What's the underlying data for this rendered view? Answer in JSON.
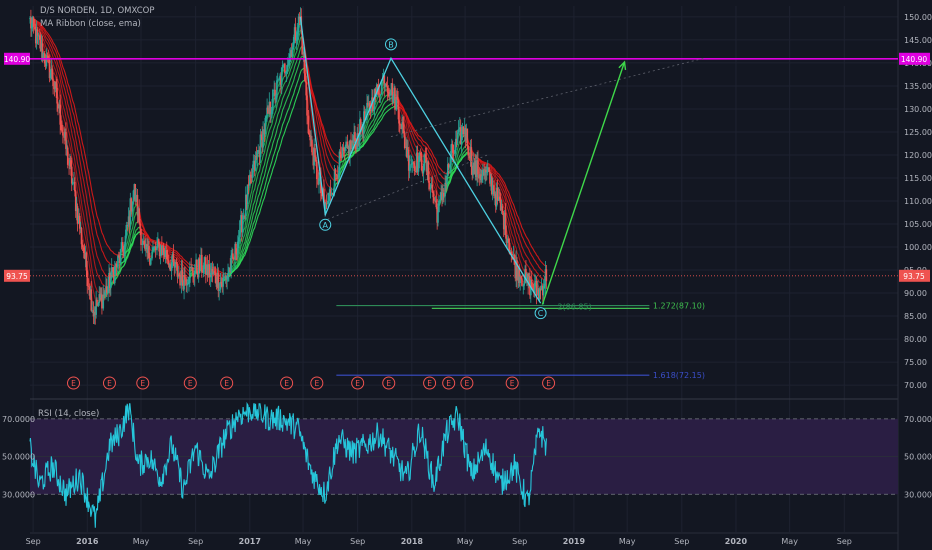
{
  "window": {
    "background": "#131722"
  },
  "main_pane": {
    "symbol_line": "D/S NORDEN, 1D, OMXCOP",
    "indicator_line": "MA Ribbon (close, ema)",
    "y_ticks": [
      "150.00",
      "145.00",
      "140.00",
      "135.00",
      "130.00",
      "125.00",
      "120.00",
      "115.00",
      "110.00",
      "105.00",
      "100.00",
      "95.00",
      "90.00",
      "85.00",
      "80.00",
      "75.00",
      "70.00"
    ],
    "hline_label": "140.90",
    "last_price_label": "93.75",
    "earnings_marker": "E",
    "fib_label_1": "2(86.85)",
    "fib_label_2": "1.272(87.10)",
    "fib_label_3": "1.618(72.15)",
    "abc_labels": [
      "A",
      "B",
      "C"
    ]
  },
  "rsi_pane": {
    "title": "RSI (14, close)",
    "y_ticks": [
      "70.0000",
      "50.0000",
      "30.0000"
    ]
  },
  "x_ticks": [
    "Sep",
    "2016",
    "May",
    "Sep",
    "2017",
    "May",
    "Sep",
    "2018",
    "May",
    "Sep",
    "2019",
    "May",
    "Sep",
    "2020",
    "May",
    "Sep"
  ],
  "colors": {
    "up": "#26a69a",
    "down": "#ef5350",
    "magenta": "#e000e0",
    "wave": "#4dd0e1",
    "arrow": "#3fd84a",
    "rsi": "#26c6da",
    "rsi_band": "#2a1e43",
    "ribbon_bull": "#2fe05a",
    "ribbon_bear": "#e01818",
    "navy": "#3a4ec8"
  },
  "chart_data": {
    "type": "line",
    "x_range": [
      "2015-08-25",
      "2020-12-31"
    ],
    "ylim": [
      68.5,
      151.5
    ],
    "price_path": [
      [
        "2015-08-25",
        149
      ],
      [
        "2015-10-15",
        137
      ],
      [
        "2015-12-01",
        113
      ],
      [
        "2016-01-15",
        86
      ],
      [
        "2016-02-10",
        90
      ],
      [
        "2016-03-25",
        100
      ],
      [
        "2016-04-15",
        113
      ],
      [
        "2016-05-10",
        98
      ],
      [
        "2016-06-15",
        100
      ],
      [
        "2016-08-01",
        93
      ],
      [
        "2016-09-15",
        96
      ],
      [
        "2016-11-01",
        92
      ],
      [
        "2016-11-25",
        97
      ],
      [
        "2017-01-05",
        115
      ],
      [
        "2017-02-15",
        130
      ],
      [
        "2017-04-01",
        142
      ],
      [
        "2017-04-25",
        150
      ],
      [
        "2017-05-15",
        124
      ],
      [
        "2017-06-20",
        108
      ],
      [
        "2017-07-20",
        118
      ],
      [
        "2017-09-01",
        124
      ],
      [
        "2017-10-01",
        131
      ],
      [
        "2017-11-01",
        137
      ],
      [
        "2017-11-30",
        131
      ],
      [
        "2017-12-25",
        119
      ],
      [
        "2018-02-01",
        118
      ],
      [
        "2018-03-01",
        107
      ],
      [
        "2018-04-01",
        120
      ],
      [
        "2018-04-30",
        126
      ],
      [
        "2018-05-20",
        117
      ],
      [
        "2018-06-25",
        115
      ],
      [
        "2018-07-25",
        107
      ],
      [
        "2018-08-20",
        96
      ],
      [
        "2018-09-20",
        92
      ],
      [
        "2018-10-15",
        90
      ],
      [
        "2018-11-01",
        94
      ]
    ],
    "hline": 140.9,
    "last_price": 93.75,
    "abc_points": [
      {
        "label": "A",
        "date": "2017-06-20",
        "price": 107
      },
      {
        "label": "B",
        "date": "2017-11-15",
        "price": 141
      },
      {
        "label": "C",
        "date": "2018-10-18",
        "price": 87.8
      }
    ],
    "wave_line": [
      [
        "2017-04-25",
        150
      ],
      [
        "2017-06-20",
        107
      ],
      [
        "2017-11-15",
        141
      ],
      [
        "2018-10-18",
        87.8
      ]
    ],
    "projection_arrow": [
      [
        "2018-10-22",
        87.5
      ],
      [
        "2019-04-25",
        140.2
      ]
    ],
    "fib_lines": [
      {
        "label": "2(86.85)",
        "price": 86.85,
        "from": "2017-07-15",
        "to": "2019-06-20",
        "color": "#2e8b57"
      },
      {
        "label": "1.272(87.10)",
        "price": 87.1,
        "from": "2018-02-15",
        "to": "2019-06-20",
        "color": "#3fbf4f"
      },
      {
        "label": "1.618(72.15)",
        "price": 72.15,
        "from": "2017-07-15",
        "to": "2019-06-20",
        "color": "#3a4ec8"
      }
    ],
    "earnings_dates": [
      "2015-12-01",
      "2016-02-20",
      "2016-05-05",
      "2016-08-20",
      "2016-11-10",
      "2017-03-25",
      "2017-06-01",
      "2017-09-01",
      "2017-11-10",
      "2018-02-10",
      "2018-03-25",
      "2018-05-05",
      "2018-08-15",
      "2018-11-05"
    ],
    "rsi": {
      "ylim": [
        10,
        80
      ],
      "levels": [
        70,
        30
      ],
      "path": [
        [
          "2015-08-25",
          55
        ],
        [
          "2015-09-15",
          35
        ],
        [
          "2015-10-15",
          45
        ],
        [
          "2015-11-15",
          30
        ],
        [
          "2015-12-15",
          40
        ],
        [
          "2016-01-20",
          16
        ],
        [
          "2016-02-20",
          55
        ],
        [
          "2016-03-15",
          63
        ],
        [
          "2016-04-05",
          77
        ],
        [
          "2016-04-25",
          45
        ],
        [
          "2016-05-20",
          50
        ],
        [
          "2016-06-15",
          38
        ],
        [
          "2016-07-10",
          56
        ],
        [
          "2016-08-05",
          32
        ],
        [
          "2016-09-01",
          55
        ],
        [
          "2016-10-01",
          38
        ],
        [
          "2016-11-05",
          60
        ],
        [
          "2016-12-05",
          72
        ],
        [
          "2017-01-10",
          75
        ],
        [
          "2017-02-15",
          70
        ],
        [
          "2017-03-15",
          70
        ],
        [
          "2017-04-20",
          65
        ],
        [
          "2017-05-20",
          42
        ],
        [
          "2017-06-20",
          30
        ],
        [
          "2017-07-20",
          60
        ],
        [
          "2017-08-20",
          52
        ],
        [
          "2017-09-20",
          56
        ],
        [
          "2017-10-20",
          62
        ],
        [
          "2017-11-20",
          50
        ],
        [
          "2017-12-20",
          38
        ],
        [
          "2018-01-20",
          65
        ],
        [
          "2018-02-20",
          35
        ],
        [
          "2018-03-20",
          62
        ],
        [
          "2018-04-15",
          72
        ],
        [
          "2018-05-15",
          40
        ],
        [
          "2018-06-20",
          55
        ],
        [
          "2018-07-20",
          35
        ],
        [
          "2018-08-20",
          45
        ],
        [
          "2018-09-20",
          25
        ],
        [
          "2018-10-15",
          65
        ],
        [
          "2018-11-01",
          55
        ]
      ]
    }
  }
}
